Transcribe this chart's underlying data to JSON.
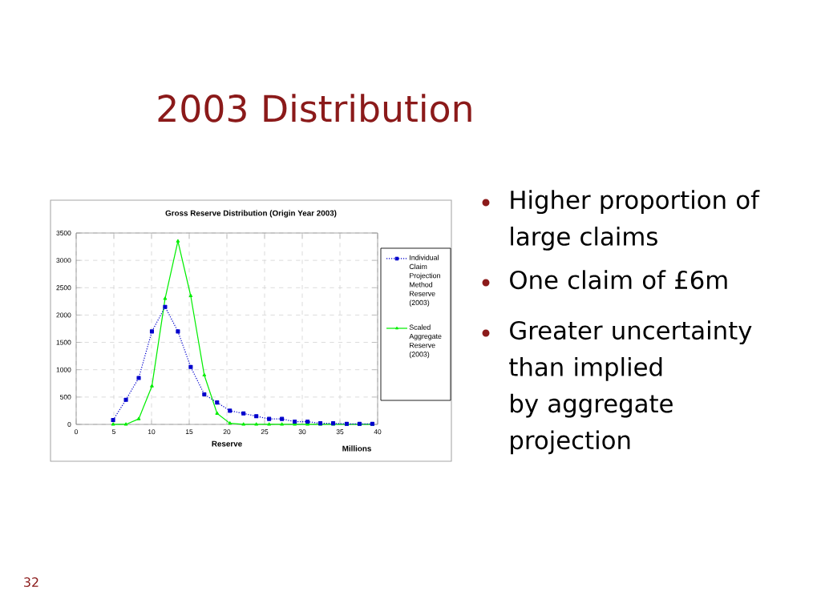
{
  "chart_data": {
    "type": "line",
    "title": "2003 Distribution",
    "subtitle": "Gross Reserve Distribution (Origin Year 2003)",
    "xlabel": "Reserve",
    "annotations": [
      "Millions",
      "Higher proportion of large claims",
      "One claim of £6m",
      "Greater uncertainty than implied by aggregate projection",
      "32"
    ],
    "x": [
      4.9,
      6.6,
      8.3,
      10.05,
      11.8,
      13.5,
      15.2,
      17.0,
      18.7,
      20.4,
      22.2,
      23.9,
      25.6,
      27.3,
      29.0,
      30.7,
      32.4,
      34.1,
      35.9,
      37.6,
      39.3
    ],
    "series": [
      {
        "name": "Individual Claim Projection Method Reserve (2003)",
        "color": "#0000cc",
        "marker": "square",
        "line_style": "dotted",
        "values": [
          80,
          450,
          850,
          1700,
          2150,
          1700,
          1050,
          550,
          400,
          250,
          200,
          150,
          100,
          100,
          50,
          50,
          20,
          20,
          10,
          10,
          10
        ]
      },
      {
        "name": "Scaled Aggregate Reserve (2003)",
        "color": "#00ee00",
        "marker": "triangle",
        "line_style": "solid",
        "values": [
          0,
          0,
          100,
          700,
          2300,
          3350,
          2350,
          900,
          200,
          20,
          0,
          0,
          0,
          0,
          0,
          0,
          0,
          0,
          0,
          0,
          0
        ]
      }
    ],
    "xlim": [
      0,
      40
    ],
    "xticks": [
      0,
      5,
      10,
      15,
      20,
      25,
      30,
      35,
      40
    ],
    "ylim": [
      0,
      3500
    ],
    "yticks": [
      0,
      500,
      1000,
      1500,
      2000,
      2500,
      3000,
      3500
    ],
    "grid": true,
    "legend": "right"
  }
}
